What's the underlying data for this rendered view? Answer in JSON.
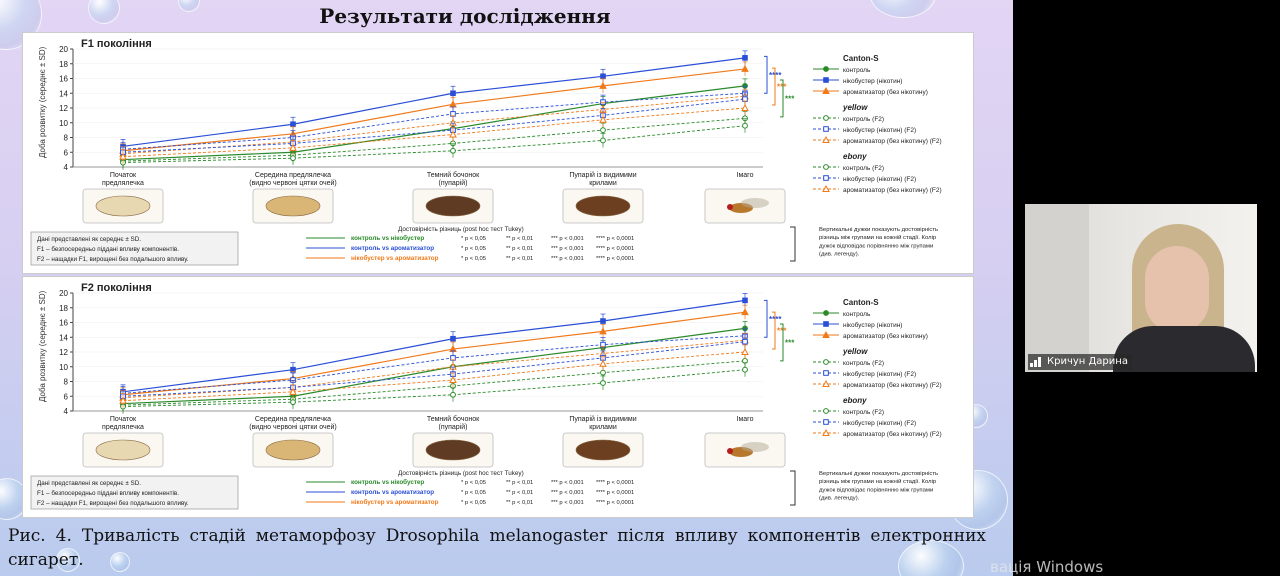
{
  "slide_title": "Результати дослідження",
  "caption": "Рис. 4. Тривалість стадій метаморфозу Drosophila melanogaster після впливу компонентів електронних сигарет.",
  "windows_activation": "вація Windows",
  "participant": {
    "name": "Кричун Дарина",
    "icon": "signal-icon"
  },
  "colors": {
    "control": "#2a8a2a",
    "nicobooster": "#2a4fd6",
    "flavor": "#f07a1a"
  },
  "shared": {
    "y_label": "Доба розвитку (середнє ± SD)",
    "stages": [
      "Початок\nпредлялечка",
      "Середина предлялечка\n(видно червоні цятки очей)",
      "Темний бочонок\n(пупарій)",
      "Пупарій із видимими\nкрилами",
      "Імаго"
    ],
    "legend": [
      {
        "group": "Canton-S",
        "items": [
          "контроль",
          "нікобустер (нікотин)",
          "ароматизатор (без нікотину)"
        ]
      },
      {
        "group": "yellow",
        "items": [
          "контроль (F2)",
          "нікобустер (нікотин) (F2)",
          "ароматизатор (без нікотину) (F2)"
        ]
      },
      {
        "group": "ebony",
        "items": [
          "контроль (F2)",
          "нікобустер (нікотин) (F2)",
          "ароматизатор (без нікотину) (F2)"
        ]
      }
    ],
    "notes": [
      "Дані представлені як середнє ± SD.",
      "F1 – безпосередньо піддані впливу компонентів.",
      "F2 – нащадки F1, вирощені без подальшого впливу."
    ],
    "comparisons": [
      {
        "label": "контроль vs нікобустер",
        "color": "#2a8a2a"
      },
      {
        "label": "контроль vs ароматизатор",
        "color": "#2a4fd6"
      },
      {
        "label": "нікобустер vs ароматизатор",
        "color": "#f07a1a"
      }
    ],
    "p_levels": [
      "* p < 0,05",
      "** p < 0,01",
      "*** p < 0,001",
      "**** p < 0,0001"
    ],
    "bracket_note": "Вертикальні дужки показують достовірність різниць між групами на кожній стадії. Колір дужок відповідає порівнянню між групами (див. легенду)."
  },
  "panels": [
    {
      "title": "F1 покоління",
      "significance_title": "Достовірність різниць (post hoc тест Tukey)"
    },
    {
      "title": "F2 покоління",
      "significance_title": "Достовірність різниць (post hoc тест Tukey)"
    }
  ],
  "chart_data": [
    {
      "type": "line",
      "title": "F1 покоління",
      "ylabel": "Доба розвитку (середнє ± SD)",
      "ylim": [
        4,
        20
      ],
      "yticks": [
        4,
        6,
        8,
        10,
        12,
        14,
        16,
        18,
        20
      ],
      "categories": [
        "Початок предлялечка",
        "Середина предлялечка (видно червоні цятки очей)",
        "Темний бочонок (пупарій)",
        "Пупарій із видимими крилами",
        "Імаго"
      ],
      "series": [
        {
          "name": "Canton-S контроль",
          "color": "#2a8a2a",
          "dash": false,
          "filled": true,
          "marker": "circle",
          "values": [
            5.0,
            6.0,
            9.2,
            12.6,
            15.0
          ]
        },
        {
          "name": "Canton-S нікобустер (нікотин)",
          "color": "#2a4fd6",
          "dash": false,
          "filled": true,
          "marker": "square",
          "values": [
            6.8,
            9.8,
            14.0,
            16.3,
            18.8
          ]
        },
        {
          "name": "Canton-S ароматизатор (без нікотину)",
          "color": "#f07a1a",
          "dash": false,
          "filled": true,
          "marker": "triangle",
          "values": [
            6.2,
            8.5,
            12.5,
            15.0,
            17.3
          ]
        },
        {
          "name": "yellow контроль (F2)",
          "color": "#2a8a2a",
          "dash": true,
          "filled": false,
          "marker": "circle",
          "values": [
            4.8,
            5.6,
            7.2,
            9.0,
            10.6
          ]
        },
        {
          "name": "yellow нікобустер (нікотин) (F2)",
          "color": "#2a4fd6",
          "dash": true,
          "filled": false,
          "marker": "square",
          "values": [
            6.4,
            8.0,
            11.2,
            12.8,
            14.0
          ]
        },
        {
          "name": "yellow ароматизатор (без нікотину) (F2)",
          "color": "#f07a1a",
          "dash": true,
          "filled": false,
          "marker": "triangle",
          "values": [
            5.8,
            7.4,
            10.0,
            11.8,
            13.6
          ]
        },
        {
          "name": "ebony контроль (F2)",
          "color": "#2a8a2a",
          "dash": true,
          "filled": false,
          "marker": "circle",
          "values": [
            4.6,
            5.2,
            6.2,
            7.6,
            9.6
          ]
        },
        {
          "name": "ebony нікобустер (нікотин) (F2)",
          "color": "#2a4fd6",
          "dash": true,
          "filled": false,
          "marker": "square",
          "values": [
            6.0,
            7.2,
            9.0,
            11.0,
            13.2
          ]
        },
        {
          "name": "ebony ароматизатор (без нікотину) (F2)",
          "color": "#f07a1a",
          "dash": true,
          "filled": false,
          "marker": "triangle",
          "values": [
            5.4,
            6.6,
            8.4,
            10.4,
            12.0
          ]
        }
      ],
      "significance_marks": [
        {
          "stage": 4,
          "label": "****",
          "color": "#2a4fd6"
        },
        {
          "stage": 4,
          "label": "***",
          "color": "#f07a1a"
        },
        {
          "stage": 4,
          "label": "***",
          "color": "#2a8a2a"
        }
      ]
    },
    {
      "type": "line",
      "title": "F2 покоління",
      "ylabel": "Доба розвитку (середнє ± SD)",
      "ylim": [
        4,
        20
      ],
      "yticks": [
        4,
        6,
        8,
        10,
        12,
        14,
        16,
        18,
        20
      ],
      "categories": [
        "Початок предлялечка",
        "Середина предлялечка (видно червоні цятки очей)",
        "Темний бочонок (пупарій)",
        "Пупарій із видимими крилами",
        "Імаго"
      ],
      "series": [
        {
          "name": "Canton-S контроль",
          "color": "#2a8a2a",
          "dash": false,
          "filled": true,
          "marker": "circle",
          "values": [
            5.0,
            6.0,
            10.0,
            12.6,
            15.2
          ]
        },
        {
          "name": "Canton-S нікобустер (нікотин)",
          "color": "#2a4fd6",
          "dash": false,
          "filled": true,
          "marker": "square",
          "values": [
            6.6,
            9.6,
            13.8,
            16.2,
            19.0
          ]
        },
        {
          "name": "Canton-S ароматизатор (без нікотину)",
          "color": "#f07a1a",
          "dash": false,
          "filled": true,
          "marker": "triangle",
          "values": [
            6.2,
            8.4,
            12.4,
            14.8,
            17.4
          ]
        },
        {
          "name": "yellow контроль (F2)",
          "color": "#2a8a2a",
          "dash": true,
          "filled": false,
          "marker": "circle",
          "values": [
            4.8,
            5.6,
            7.4,
            9.2,
            10.8
          ]
        },
        {
          "name": "yellow нікобустер (нікотин) (F2)",
          "color": "#2a4fd6",
          "dash": true,
          "filled": false,
          "marker": "square",
          "values": [
            6.4,
            8.2,
            11.2,
            13.0,
            14.2
          ]
        },
        {
          "name": "yellow ароматизатор (без нікотину) (F2)",
          "color": "#f07a1a",
          "dash": true,
          "filled": false,
          "marker": "triangle",
          "values": [
            5.8,
            7.2,
            10.0,
            11.8,
            13.6
          ]
        },
        {
          "name": "ebony контроль (F2)",
          "color": "#2a8a2a",
          "dash": true,
          "filled": false,
          "marker": "circle",
          "values": [
            4.6,
            5.2,
            6.2,
            7.8,
            9.6
          ]
        },
        {
          "name": "ebony нікобустер (нікотин) (F2)",
          "color": "#2a4fd6",
          "dash": true,
          "filled": false,
          "marker": "square",
          "values": [
            6.0,
            7.2,
            9.0,
            11.2,
            13.4
          ]
        },
        {
          "name": "ebony ароматизатор (без нікотину) (F2)",
          "color": "#f07a1a",
          "dash": true,
          "filled": false,
          "marker": "triangle",
          "values": [
            5.4,
            6.6,
            8.2,
            10.4,
            12.0
          ]
        }
      ],
      "significance_marks": [
        {
          "stage": 4,
          "label": "****",
          "color": "#2a4fd6"
        },
        {
          "stage": 4,
          "label": "***",
          "color": "#f07a1a"
        },
        {
          "stage": 4,
          "label": "***",
          "color": "#2a8a2a"
        }
      ]
    }
  ]
}
